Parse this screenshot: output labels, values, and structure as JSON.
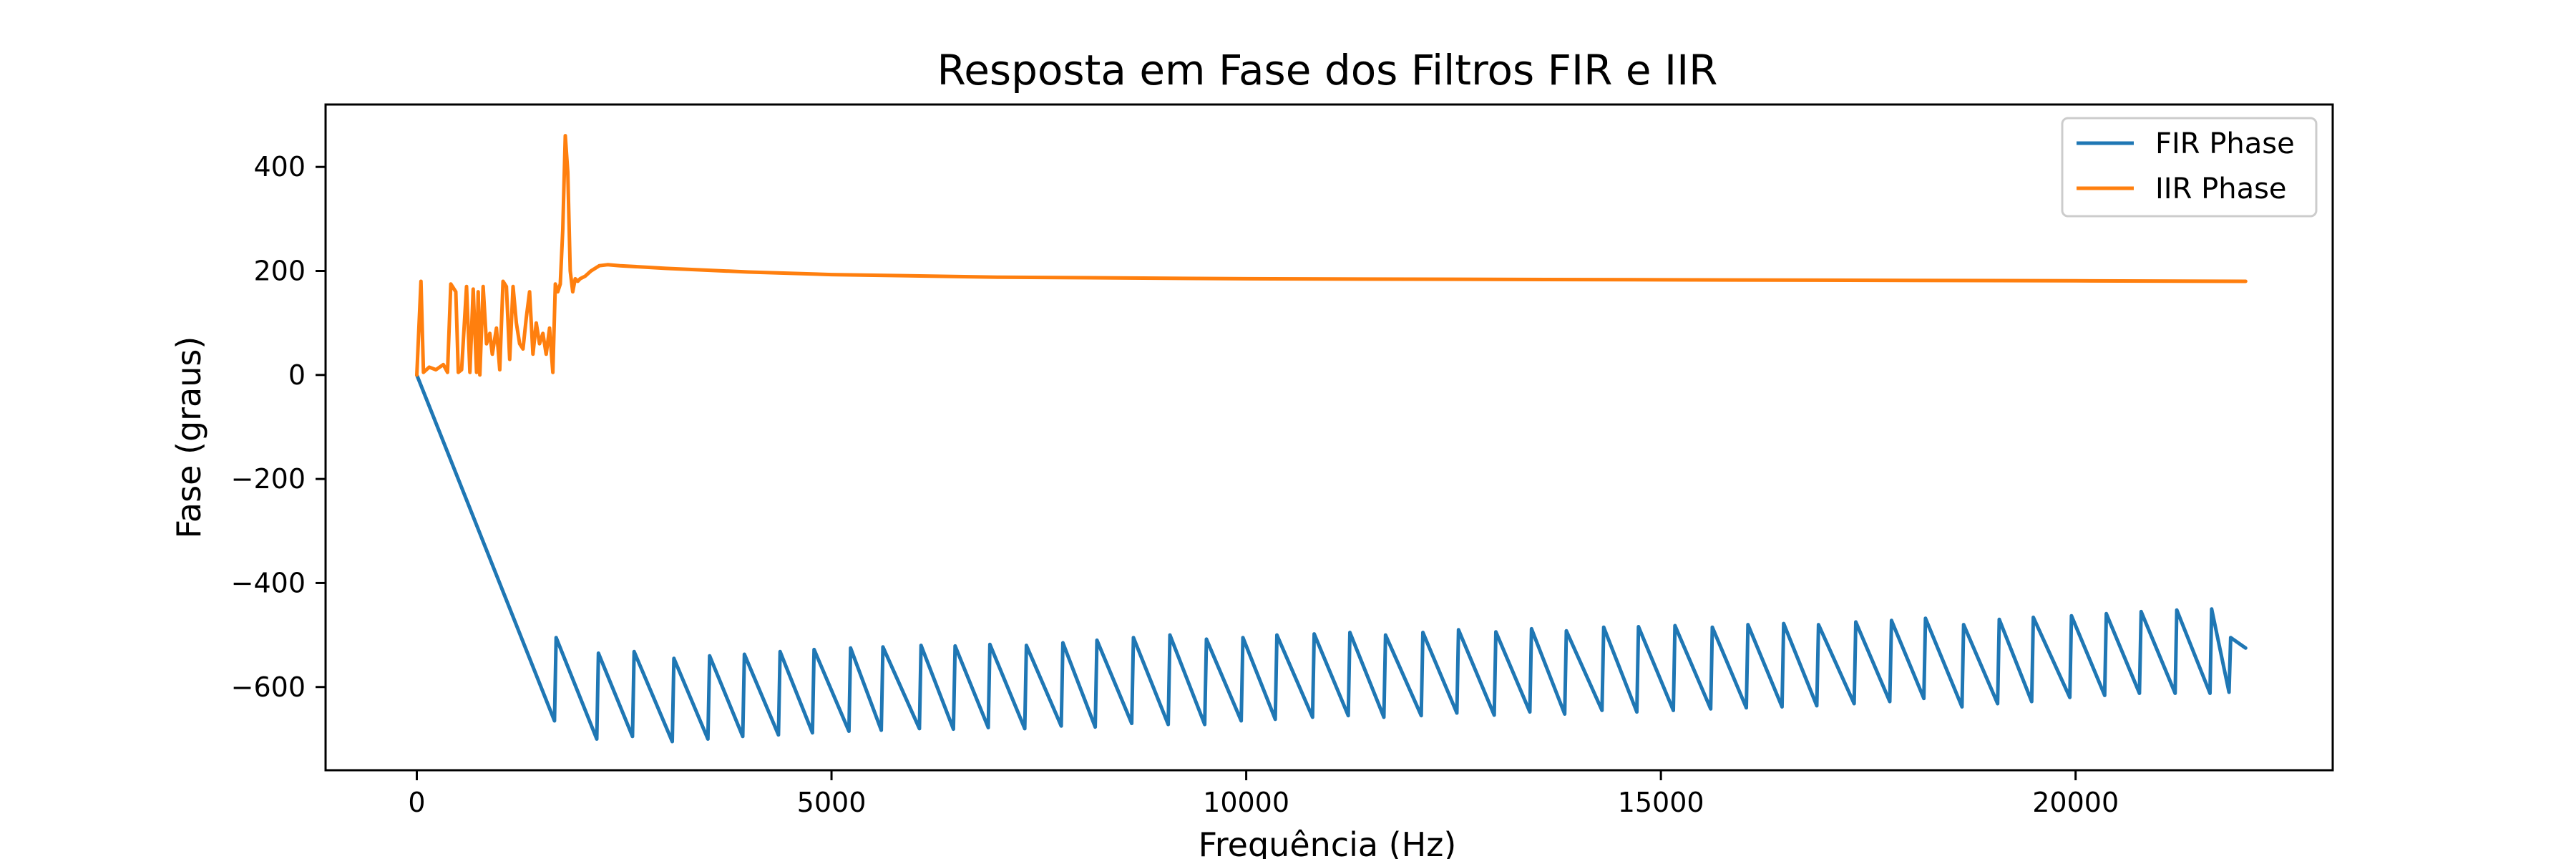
{
  "chart_data": {
    "type": "line",
    "title": "Resposta em Fase dos Filtros FIR e IIR",
    "xlabel": "Frequência (Hz)",
    "ylabel": "Fase (graus)",
    "xlim": [
      -1100,
      23100
    ],
    "ylim": [
      -760,
      520
    ],
    "xticks": [
      0,
      5000,
      10000,
      15000,
      20000
    ],
    "yticks": [
      -600,
      -400,
      -200,
      0,
      200,
      400
    ],
    "legend_position": "top-right",
    "grid": false,
    "colors": {
      "fir": "#1f77b4",
      "iir": "#ff7f0e"
    },
    "series": [
      {
        "name": "FIR Phase",
        "key": "fir",
        "x": [
          0,
          1660,
          1680,
          2170,
          2190,
          2600,
          2620,
          3080,
          3100,
          3510,
          3530,
          3930,
          3950,
          4360,
          4380,
          4770,
          4790,
          5210,
          5230,
          5600,
          5620,
          6060,
          6080,
          6470,
          6490,
          6890,
          6910,
          7330,
          7350,
          7770,
          7790,
          8180,
          8200,
          8620,
          8640,
          9060,
          9080,
          9500,
          9520,
          9940,
          9960,
          10350,
          10370,
          10800,
          10820,
          11230,
          11250,
          11660,
          11680,
          12110,
          12130,
          12540,
          12560,
          12990,
          13010,
          13420,
          13440,
          13840,
          13860,
          14290,
          14310,
          14710,
          14730,
          15150,
          15170,
          15600,
          15620,
          16030,
          16050,
          16460,
          16480,
          16880,
          16900,
          17330,
          17350,
          17760,
          17780,
          18170,
          18190,
          18630,
          18650,
          19060,
          19080,
          19470,
          19490,
          19930,
          19950,
          20350,
          20370,
          20770,
          20790,
          21200,
          21220,
          21620,
          21640,
          21850,
          21870,
          22050
        ],
        "values": [
          0,
          -665,
          -505,
          -700,
          -535,
          -695,
          -532,
          -705,
          -545,
          -700,
          -540,
          -695,
          -537,
          -692,
          -532,
          -688,
          -528,
          -685,
          -525,
          -683,
          -523,
          -680,
          -520,
          -681,
          -521,
          -678,
          -518,
          -680,
          -520,
          -675,
          -515,
          -677,
          -510,
          -670,
          -505,
          -672,
          -500,
          -672,
          -508,
          -665,
          -505,
          -662,
          -500,
          -658,
          -498,
          -655,
          -495,
          -658,
          -500,
          -655,
          -495,
          -650,
          -490,
          -654,
          -494,
          -648,
          -488,
          -652,
          -492,
          -645,
          -485,
          -648,
          -484,
          -645,
          -482,
          -642,
          -485,
          -640,
          -480,
          -638,
          -478,
          -636,
          -480,
          -632,
          -475,
          -628,
          -472,
          -622,
          -468,
          -638,
          -480,
          -632,
          -470,
          -628,
          -466,
          -620,
          -463,
          -616,
          -459,
          -612,
          -455,
          -612,
          -452,
          -612,
          -450,
          -610,
          -505,
          -525
        ]
      },
      {
        "name": "IIR Phase",
        "key": "iir",
        "x": [
          0,
          50,
          80,
          150,
          230,
          320,
          370,
          410,
          470,
          500,
          540,
          600,
          640,
          680,
          720,
          740,
          760,
          800,
          840,
          880,
          910,
          960,
          1000,
          1040,
          1080,
          1120,
          1160,
          1200,
          1240,
          1280,
          1320,
          1360,
          1400,
          1440,
          1480,
          1520,
          1560,
          1600,
          1640,
          1670,
          1700,
          1730,
          1760,
          1790,
          1820,
          1850,
          1880,
          1910,
          1940,
          1970,
          2030,
          2100,
          2200,
          2300,
          2450,
          3000,
          4000,
          5000,
          7000,
          10000,
          15000,
          20000,
          22050
        ],
        "values": [
          0,
          180,
          5,
          15,
          10,
          20,
          5,
          175,
          160,
          5,
          10,
          170,
          5,
          165,
          5,
          160,
          0,
          170,
          60,
          80,
          40,
          90,
          10,
          180,
          170,
          30,
          170,
          100,
          60,
          50,
          110,
          160,
          40,
          100,
          60,
          80,
          40,
          90,
          5,
          175,
          160,
          175,
          280,
          460,
          390,
          200,
          160,
          185,
          180,
          185,
          190,
          200,
          210,
          212,
          210,
          205,
          198,
          193,
          188,
          185,
          183,
          181,
          180
        ]
      }
    ]
  }
}
